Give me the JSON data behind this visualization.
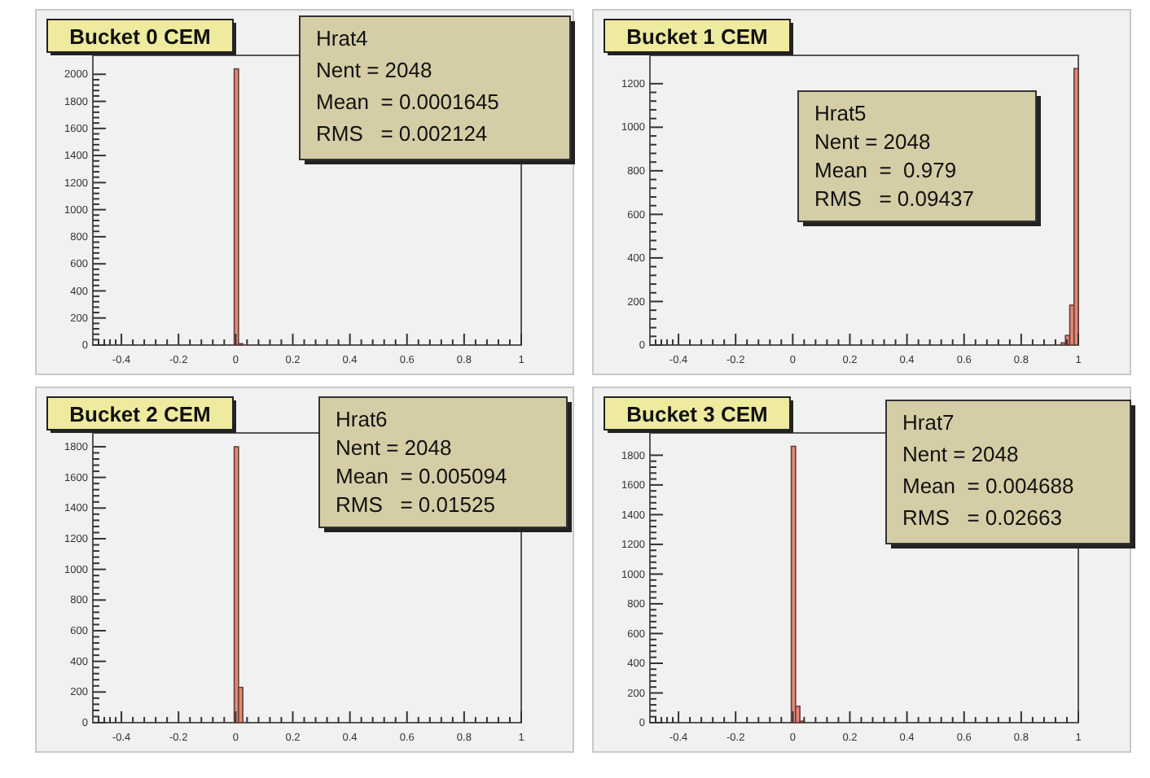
{
  "chart_data": [
    {
      "type": "histogram",
      "title": "Bucket 0 CEM",
      "annotations": [
        "Hrat4",
        "Nent = 2048",
        "Mean  = 0.0001645",
        "RMS   = 0.002124"
      ],
      "bins": [
        -0.005,
        0.01,
        0.025
      ],
      "values": [
        2040,
        10
      ],
      "color": "#e08878",
      "xlim": [
        -0.5,
        1
      ],
      "ylim": [
        0,
        2140
      ],
      "xticks": [
        -0.4,
        -0.2,
        0,
        0.2,
        0.4,
        0.6,
        0.8,
        1
      ],
      "yticks": [
        0,
        200,
        400,
        600,
        800,
        1000,
        1200,
        1400,
        1600,
        1800,
        2000
      ]
    },
    {
      "type": "histogram",
      "title": "Bucket 1 CEM",
      "annotations": [
        "Hrat5",
        "Nent = 2048",
        "Mean  =  0.979",
        "RMS   = 0.09437"
      ],
      "bins": [
        0.94,
        0.955,
        0.97,
        0.985,
        1.0
      ],
      "values": [
        10,
        44,
        183,
        1269
      ],
      "color": "#e08878",
      "xlim": [
        -0.5,
        1
      ],
      "ylim": [
        0,
        1330
      ],
      "xticks": [
        -0.4,
        -0.2,
        0,
        0.2,
        0.4,
        0.6,
        0.8,
        1
      ],
      "yticks": [
        0,
        200,
        400,
        600,
        800,
        1000,
        1200
      ]
    },
    {
      "type": "histogram",
      "title": "Bucket 2 CEM",
      "annotations": [
        "Hrat6",
        "Nent = 2048",
        "Mean  = 0.005094",
        "RMS   = 0.01525"
      ],
      "bins": [
        -0.005,
        0.01,
        0.025
      ],
      "values": [
        1800,
        230
      ],
      "color": "#e08878",
      "xlim": [
        -0.5,
        1
      ],
      "ylim": [
        0,
        1890
      ],
      "xticks": [
        -0.4,
        -0.2,
        0,
        0.2,
        0.4,
        0.6,
        0.8,
        1
      ],
      "yticks": [
        0,
        200,
        400,
        600,
        800,
        1000,
        1200,
        1400,
        1600,
        1800
      ]
    },
    {
      "type": "histogram",
      "title": "Bucket 3 CEM",
      "annotations": [
        "Hrat7",
        "Nent = 2048",
        "Mean  = 0.004688",
        "RMS   = 0.02663"
      ],
      "bins": [
        -0.005,
        0.01,
        0.025,
        0.04
      ],
      "values": [
        1860,
        110,
        10
      ],
      "color": "#e08878",
      "xlim": [
        -0.5,
        1
      ],
      "ylim": [
        0,
        1950
      ],
      "xticks": [
        -0.4,
        -0.2,
        0,
        0.2,
        0.4,
        0.6,
        0.8,
        1
      ],
      "yticks": [
        0,
        200,
        400,
        600,
        800,
        1000,
        1200,
        1400,
        1600,
        1800
      ]
    }
  ]
}
